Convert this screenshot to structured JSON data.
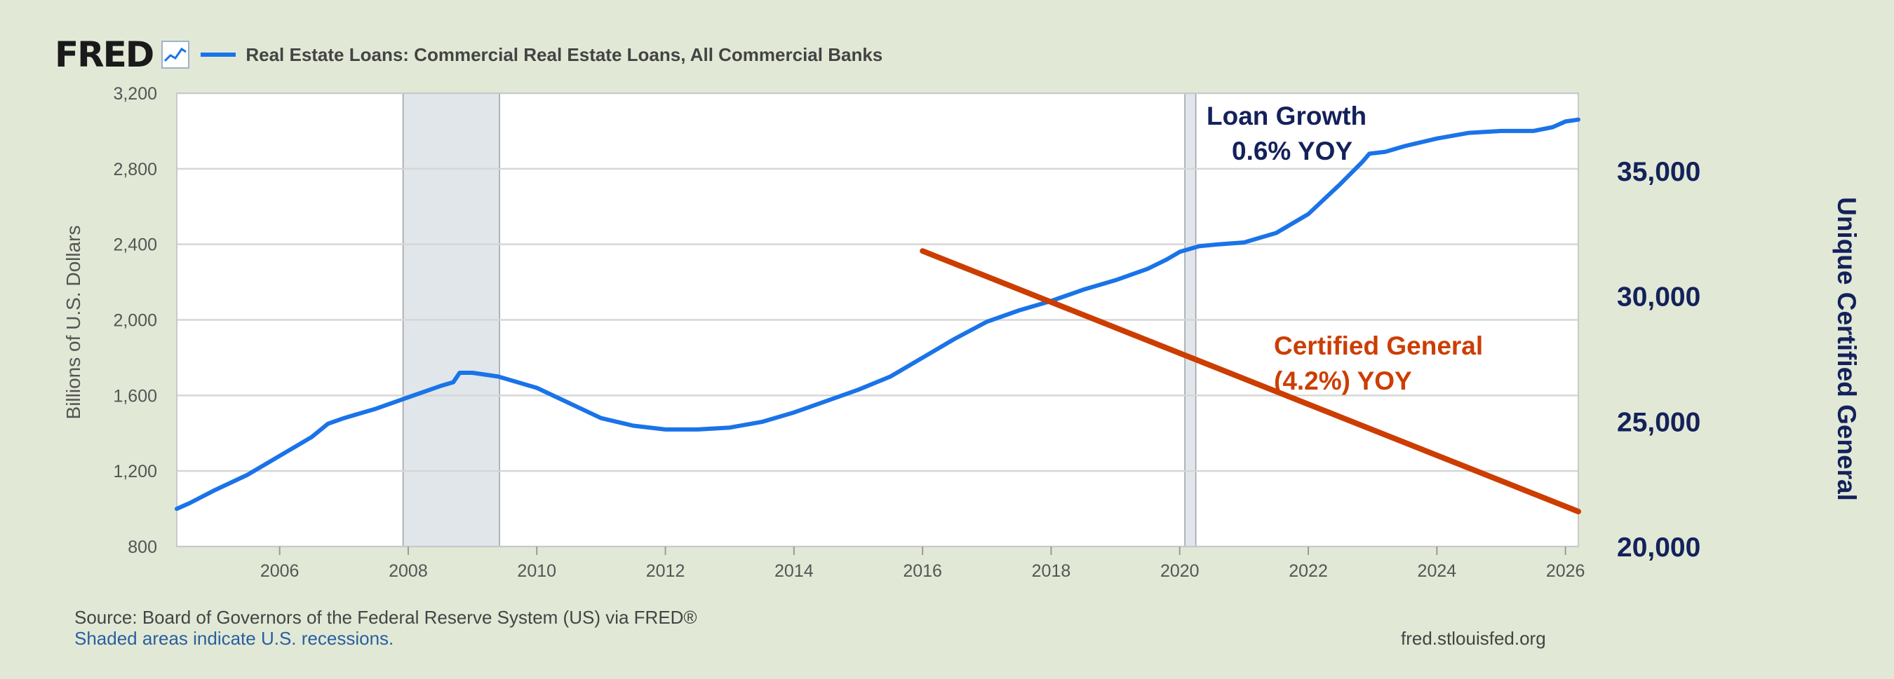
{
  "header": {
    "logo": "FRED",
    "legend_label": "Real Estate Loans: Commercial Real Estate Loans, All Commercial Banks"
  },
  "footer": {
    "source": "Source: Board of Governors of the Federal Reserve System (US) via FRED®",
    "note": "Shaded areas indicate U.S. recessions.",
    "url": "fred.stlouisfed.org"
  },
  "annotations": {
    "loan_growth_title": "Loan Growth",
    "loan_growth_value": "0.6% YOY",
    "certified_title": "Certified General",
    "certified_value": "(4.2%) YOY"
  },
  "colors": {
    "background": "#e1e9d6",
    "loan_series": "#1a73e8",
    "certified_series": "#cc3d00",
    "right_axis": "#14215a",
    "recession_shade": "#e1e6ea"
  },
  "chart_data": {
    "type": "line",
    "ylabel": "Billions of U.S. Dollars",
    "ylabel_right": "Unique Certified General",
    "xlim": [
      2004.4,
      2026.2
    ],
    "ylim": [
      800,
      3200
    ],
    "ylim_right": [
      20000,
      38100
    ],
    "x_ticks": [
      2006,
      2008,
      2010,
      2012,
      2014,
      2016,
      2018,
      2020,
      2022,
      2024,
      2026
    ],
    "y_ticks": [
      800,
      1200,
      1600,
      2000,
      2400,
      2800,
      3200
    ],
    "y_ticks_right": [
      20000,
      25000,
      30000,
      35000
    ],
    "grid": true,
    "recessions": [
      [
        2007.92,
        2009.42
      ],
      [
        2020.08,
        2020.25
      ]
    ],
    "series": [
      {
        "name": "Real Estate Loans: Commercial Real Estate Loans, All Commercial Banks",
        "axis": "left",
        "x": [
          2004.4,
          2004.6,
          2005.0,
          2005.5,
          2006.0,
          2006.5,
          2006.75,
          2007.0,
          2007.5,
          2008.0,
          2008.5,
          2008.7,
          2008.8,
          2009.0,
          2009.4,
          2010.0,
          2010.5,
          2011.0,
          2011.5,
          2012.0,
          2012.5,
          2013.0,
          2013.5,
          2014.0,
          2014.5,
          2015.0,
          2015.5,
          2016.0,
          2016.5,
          2017.0,
          2017.5,
          2018.0,
          2018.5,
          2019.0,
          2019.5,
          2019.8,
          2020.0,
          2020.3,
          2020.6,
          2021.0,
          2021.5,
          2022.0,
          2022.5,
          2022.85,
          2022.95,
          2023.2,
          2023.5,
          2024.0,
          2024.5,
          2025.0,
          2025.5,
          2025.8,
          2026.0,
          2026.2
        ],
        "y": [
          1000,
          1030,
          1100,
          1180,
          1280,
          1380,
          1450,
          1480,
          1530,
          1590,
          1650,
          1670,
          1720,
          1720,
          1700,
          1640,
          1560,
          1480,
          1440,
          1420,
          1420,
          1430,
          1460,
          1510,
          1570,
          1630,
          1700,
          1800,
          1900,
          1990,
          2050,
          2100,
          2160,
          2210,
          2270,
          2320,
          2360,
          2390,
          2400,
          2410,
          2460,
          2560,
          2720,
          2840,
          2880,
          2890,
          2920,
          2960,
          2990,
          3000,
          3000,
          3020,
          3050,
          3060
        ]
      },
      {
        "name": "Certified General",
        "axis": "right",
        "x": [
          2016.0,
          2026.2
        ],
        "y": [
          31800,
          21400
        ]
      }
    ]
  }
}
